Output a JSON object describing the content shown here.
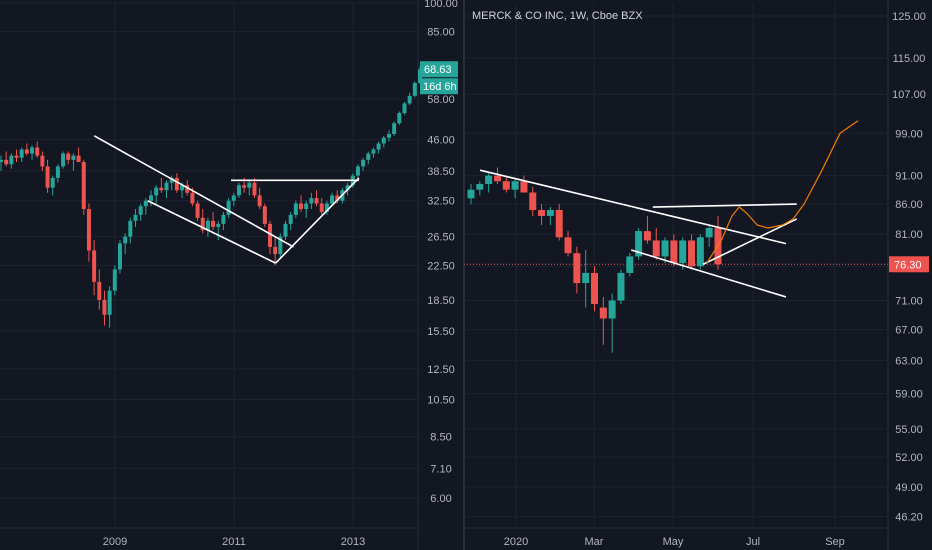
{
  "chart_data": [
    {
      "type": "candlestick",
      "title": "",
      "log_scale": true,
      "ylim": [
        5.0,
        100.0
      ],
      "grid": true,
      "x_tick_labels": [
        "2009",
        "2011",
        "2013"
      ],
      "y_tick_labels": [
        "100.00",
        "85.00",
        "58.00",
        "46.00",
        "38.50",
        "32.50",
        "26.50",
        "22.50",
        "18.50",
        "15.50",
        "12.50",
        "10.50",
        "8.50",
        "7.10",
        "6.00"
      ],
      "y_ticks": [
        100,
        85,
        58,
        46,
        38.5,
        32.5,
        26.5,
        22.5,
        18.5,
        15.5,
        12.5,
        10.5,
        8.5,
        7.1,
        6.0
      ],
      "last_price": 68.63,
      "last_price_label": "68.63",
      "countdown_label": "16d 6h",
      "colors": {
        "up": "#26a69a",
        "down": "#ef5350",
        "trendline": "#ffffff",
        "badge": "#26a69a"
      },
      "candles": [
        [
          40.5,
          42.0,
          38.5,
          41.0
        ],
        [
          41.0,
          43.0,
          39.5,
          40.0
        ],
        [
          40.0,
          42.5,
          39.0,
          42.0
        ],
        [
          42.0,
          43.5,
          40.5,
          41.5
        ],
        [
          41.5,
          44.0,
          40.5,
          43.5
        ],
        [
          43.5,
          45.0,
          42.0,
          42.5
        ],
        [
          42.5,
          44.5,
          41.0,
          44.0
        ],
        [
          44.0,
          45.5,
          41.5,
          42.0
        ],
        [
          42.0,
          43.0,
          38.5,
          39.5
        ],
        [
          39.5,
          41.0,
          34.0,
          35.0
        ],
        [
          35.0,
          37.5,
          33.5,
          37.0
        ],
        [
          37.0,
          40.0,
          36.0,
          39.5
        ],
        [
          39.5,
          43.0,
          39.0,
          42.5
        ],
        [
          42.5,
          43.0,
          40.0,
          41.0
        ],
        [
          41.0,
          42.5,
          38.5,
          42.0
        ],
        [
          42.0,
          44.0,
          40.5,
          40.5
        ],
        [
          40.5,
          41.0,
          30.0,
          31.0
        ],
        [
          31.0,
          32.0,
          23.0,
          24.5
        ],
        [
          24.5,
          26.0,
          19.0,
          20.5
        ],
        [
          20.5,
          22.0,
          17.5,
          18.5
        ],
        [
          18.5,
          19.5,
          16.0,
          17.0
        ],
        [
          17.0,
          20.0,
          15.8,
          19.5
        ],
        [
          19.5,
          22.5,
          19.0,
          22.0
        ],
        [
          22.0,
          26.0,
          21.5,
          25.5
        ],
        [
          25.5,
          27.0,
          24.0,
          26.5
        ],
        [
          26.5,
          29.5,
          25.5,
          29.0
        ],
        [
          29.0,
          31.0,
          28.0,
          30.0
        ],
        [
          30.0,
          32.0,
          29.0,
          31.5
        ],
        [
          31.5,
          33.0,
          30.0,
          32.5
        ],
        [
          32.5,
          34.5,
          31.5,
          33.5
        ],
        [
          33.5,
          35.5,
          32.0,
          35.0
        ],
        [
          35.0,
          37.0,
          34.0,
          34.5
        ],
        [
          34.5,
          36.5,
          33.0,
          36.0
        ],
        [
          36.0,
          37.5,
          34.5,
          37.0
        ],
        [
          37.0,
          38.0,
          34.0,
          34.5
        ],
        [
          34.5,
          36.0,
          33.0,
          35.5
        ],
        [
          35.5,
          36.5,
          33.5,
          34.0
        ],
        [
          34.0,
          35.0,
          31.5,
          32.0
        ],
        [
          32.0,
          32.5,
          29.0,
          29.5
        ],
        [
          29.5,
          31.0,
          27.0,
          27.5
        ],
        [
          27.5,
          29.5,
          26.5,
          29.0
        ],
        [
          29.0,
          30.5,
          27.5,
          28.0
        ],
        [
          28.0,
          29.0,
          26.0,
          28.5
        ],
        [
          28.5,
          30.5,
          27.5,
          30.0
        ],
        [
          30.0,
          33.0,
          29.5,
          32.5
        ],
        [
          32.5,
          34.0,
          31.5,
          33.5
        ],
        [
          33.5,
          36.0,
          33.0,
          35.5
        ],
        [
          35.5,
          37.0,
          34.0,
          35.0
        ],
        [
          35.0,
          36.5,
          33.5,
          36.0
        ],
        [
          36.0,
          37.0,
          33.0,
          33.5
        ],
        [
          33.5,
          35.0,
          31.0,
          31.5
        ],
        [
          31.5,
          32.0,
          28.0,
          28.5
        ],
        [
          28.5,
          29.0,
          24.0,
          25.0
        ],
        [
          25.0,
          26.5,
          22.5,
          24.0
        ],
        [
          24.0,
          27.0,
          23.5,
          26.5
        ],
        [
          26.5,
          29.0,
          26.0,
          28.5
        ],
        [
          28.5,
          30.5,
          27.5,
          30.0
        ],
        [
          30.0,
          32.5,
          29.5,
          32.0
        ],
        [
          32.0,
          33.5,
          30.5,
          31.0
        ],
        [
          31.0,
          32.5,
          29.5,
          32.0
        ],
        [
          32.0,
          34.0,
          31.0,
          33.0
        ],
        [
          33.0,
          34.5,
          31.5,
          32.0
        ],
        [
          32.0,
          33.0,
          30.0,
          30.5
        ],
        [
          30.5,
          32.5,
          30.0,
          32.0
        ],
        [
          32.0,
          34.0,
          31.5,
          33.5
        ],
        [
          33.5,
          34.5,
          32.0,
          32.5
        ],
        [
          32.5,
          35.0,
          32.0,
          34.5
        ],
        [
          34.5,
          36.0,
          33.5,
          35.5
        ],
        [
          35.5,
          38.0,
          35.0,
          37.5
        ],
        [
          37.5,
          40.0,
          37.0,
          39.5
        ],
        [
          39.5,
          41.5,
          38.5,
          41.0
        ],
        [
          41.0,
          43.0,
          40.0,
          42.5
        ],
        [
          42.5,
          44.0,
          41.5,
          43.5
        ],
        [
          43.5,
          45.5,
          42.5,
          45.0
        ],
        [
          45.0,
          47.0,
          44.0,
          46.5
        ],
        [
          46.5,
          48.5,
          45.5,
          47.5
        ],
        [
          47.5,
          51.0,
          47.0,
          50.5
        ],
        [
          50.5,
          54.0,
          50.0,
          53.5
        ],
        [
          53.5,
          57.0,
          53.0,
          56.5
        ],
        [
          56.5,
          60.0,
          56.0,
          59.0
        ],
        [
          59.0,
          64.0,
          58.5,
          63.5
        ],
        [
          63.5,
          70.0,
          63.0,
          68.63
        ]
      ],
      "trendlines": [
        [
          [
            2008.65,
            47.0
          ],
          [
            2012.0,
            25.0
          ]
        ],
        [
          [
            2009.55,
            32.5
          ],
          [
            2011.7,
            22.8
          ]
        ],
        [
          [
            2010.95,
            36.5
          ],
          [
            2013.1,
            36.5
          ]
        ],
        [
          [
            2011.7,
            22.8
          ],
          [
            2013.1,
            37.0
          ]
        ]
      ]
    },
    {
      "type": "candlestick",
      "title": "MERCK & CO INC, 1W, Cboe BZX",
      "log_scale": true,
      "ylim": [
        45.0,
        130.0
      ],
      "grid": true,
      "x_tick_labels": [
        "2020",
        "Mar",
        "May",
        "Jul",
        "Sep"
      ],
      "y_tick_labels": [
        "125.00",
        "115.00",
        "107.00",
        "99.00",
        "91.00",
        "86.00",
        "81.00",
        "76.00",
        "71.00",
        "67.00",
        "63.00",
        "59.00",
        "55.00",
        "52.00",
        "49.00",
        "46.20"
      ],
      "y_ticks": [
        125,
        115,
        107,
        99,
        91,
        86,
        81,
        76,
        71,
        67,
        63,
        59,
        55,
        52,
        49,
        46.2
      ],
      "last_price": 76.3,
      "last_price_label": "76.30",
      "colors": {
        "up": "#26a69a",
        "down": "#ef5350",
        "trendline": "#ffffff",
        "projection": "#f57c00",
        "price_line": "#ef5350"
      },
      "candles": [
        [
          87.0,
          89.5,
          86.0,
          88.5
        ],
        [
          88.5,
          90.0,
          87.5,
          89.5
        ],
        [
          89.5,
          91.5,
          88.0,
          91.0
        ],
        [
          91.0,
          92.5,
          89.5,
          90.0
        ],
        [
          90.0,
          91.0,
          88.0,
          88.5
        ],
        [
          88.5,
          90.5,
          87.0,
          90.0
        ],
        [
          90.0,
          91.0,
          88.0,
          88.0
        ],
        [
          88.0,
          89.0,
          84.0,
          85.0
        ],
        [
          85.0,
          86.0,
          82.5,
          84.0
        ],
        [
          84.0,
          85.5,
          82.5,
          85.0
        ],
        [
          85.0,
          86.0,
          80.0,
          80.5
        ],
        [
          80.5,
          81.5,
          77.5,
          78.0
        ],
        [
          78.0,
          79.0,
          72.0,
          73.5
        ],
        [
          73.5,
          78.5,
          70.0,
          75.0
        ],
        [
          75.0,
          76.0,
          69.5,
          70.5
        ],
        [
          70.0,
          71.5,
          65.0,
          68.5
        ],
        [
          68.5,
          72.0,
          64.0,
          71.0
        ],
        [
          71.0,
          75.5,
          70.5,
          75.0
        ],
        [
          75.0,
          78.0,
          74.5,
          77.5
        ],
        [
          77.5,
          82.0,
          77.0,
          81.5
        ],
        [
          81.5,
          84.0,
          79.5,
          80.0
        ],
        [
          80.0,
          82.0,
          77.0,
          77.5
        ],
        [
          77.5,
          80.5,
          76.5,
          80.0
        ],
        [
          80.0,
          81.0,
          76.0,
          76.5
        ],
        [
          76.5,
          80.5,
          75.5,
          80.0
        ],
        [
          80.0,
          81.0,
          75.5,
          76.0
        ],
        [
          76.0,
          81.0,
          75.5,
          80.5
        ],
        [
          80.5,
          82.5,
          79.0,
          82.0
        ],
        [
          82.0,
          84.0,
          75.5,
          76.3
        ]
      ],
      "trendlines": [
        [
          [
            2019.9,
            92.0
          ],
          [
            2020.75,
            79.5
          ]
        ],
        [
          [
            2020.32,
            78.5
          ],
          [
            2020.75,
            71.5
          ]
        ],
        [
          [
            2020.38,
            85.5
          ],
          [
            2020.78,
            86.0
          ]
        ],
        [
          [
            2020.52,
            76.3
          ],
          [
            2020.78,
            83.5
          ]
        ]
      ],
      "projection": [
        [
          2020.53,
          76.5
        ],
        [
          2020.57,
          80.0
        ],
        [
          2020.6,
          84.0
        ],
        [
          2020.62,
          85.5
        ],
        [
          2020.64,
          84.5
        ],
        [
          2020.67,
          82.5
        ],
        [
          2020.7,
          82.0
        ],
        [
          2020.74,
          82.5
        ],
        [
          2020.77,
          83.5
        ],
        [
          2020.8,
          86.0
        ],
        [
          2020.85,
          92.0
        ],
        [
          2020.9,
          99.0
        ],
        [
          2020.95,
          101.5
        ]
      ]
    }
  ]
}
